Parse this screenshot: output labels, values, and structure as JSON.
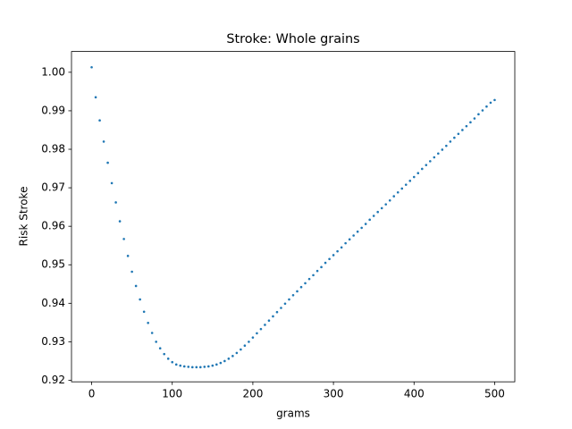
{
  "chart_data": {
    "type": "scatter",
    "title": "Stroke: Whole grains",
    "x_label": "grams",
    "y_label": "Risk Stroke",
    "color": "#1f77b4",
    "x": [
      0,
      5,
      10,
      15,
      20,
      25,
      30,
      35,
      40,
      45,
      50,
      55,
      60,
      65,
      70,
      75,
      80,
      85,
      90,
      95,
      100,
      105,
      110,
      115,
      120,
      125,
      130,
      135,
      140,
      145,
      150,
      155,
      160,
      165,
      170,
      175,
      180,
      185,
      190,
      195,
      200,
      205,
      210,
      215,
      220,
      225,
      230,
      235,
      240,
      245,
      250,
      255,
      260,
      265,
      270,
      275,
      280,
      285,
      290,
      295,
      300,
      305,
      310,
      315,
      320,
      325,
      330,
      335,
      340,
      345,
      350,
      355,
      360,
      365,
      370,
      375,
      380,
      385,
      390,
      395,
      400,
      405,
      410,
      415,
      420,
      425,
      430,
      435,
      440,
      445,
      450,
      455,
      460,
      465,
      470,
      475,
      480,
      485,
      490,
      495,
      500
    ],
    "values": [
      1.0013,
      0.9935,
      0.9875,
      0.982,
      0.9765,
      0.9712,
      0.9662,
      0.9613,
      0.9567,
      0.9523,
      0.9482,
      0.9445,
      0.941,
      0.9378,
      0.9349,
      0.9323,
      0.93,
      0.9283,
      0.9268,
      0.9256,
      0.9247,
      0.9241,
      0.9238,
      0.9236,
      0.9235,
      0.9234,
      0.9234,
      0.9234,
      0.9235,
      0.9236,
      0.9238,
      0.9241,
      0.9245,
      0.925,
      0.9256,
      0.9263,
      0.9271,
      0.928,
      0.929,
      0.93,
      0.9311,
      0.9322,
      0.9333,
      0.9344,
      0.9355,
      0.9366,
      0.9377,
      0.9388,
      0.9399,
      0.941,
      0.9421,
      0.9431,
      0.9442,
      0.9452,
      0.9463,
      0.9473,
      0.9484,
      0.9494,
      0.9505,
      0.9515,
      0.9525,
      0.9535,
      0.9545,
      0.9556,
      0.9566,
      0.9576,
      0.9586,
      0.9596,
      0.9606,
      0.9617,
      0.9627,
      0.9637,
      0.9647,
      0.9657,
      0.9667,
      0.9678,
      0.9688,
      0.9698,
      0.9708,
      0.9718,
      0.9728,
      0.9738,
      0.9749,
      0.9759,
      0.9769,
      0.9779,
      0.9789,
      0.9799,
      0.9809,
      0.982,
      0.983,
      0.984,
      0.985,
      0.986,
      0.987,
      0.988,
      0.9891,
      0.9901,
      0.9911,
      0.9921,
      0.9928
    ],
    "xlim": [
      -25,
      525
    ],
    "ylim": [
      0.9196,
      1.0054
    ],
    "xticks": [
      0,
      100,
      200,
      300,
      400,
      500
    ],
    "yticks": [
      0.92,
      0.93,
      0.94,
      0.95,
      0.96,
      0.97,
      0.98,
      0.99,
      {
        "value": 1,
        "label": "1.00"
      }
    ]
  }
}
